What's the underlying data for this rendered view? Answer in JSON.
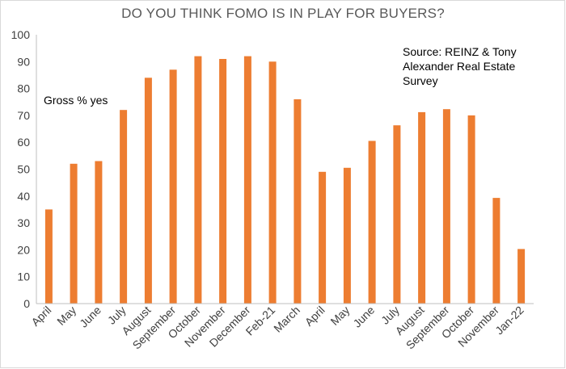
{
  "chart_data": {
    "type": "bar",
    "title": "DO YOU THINK FOMO IS IN PLAY FOR BUYERS?",
    "xlabel": "",
    "ylabel": "",
    "ylim": [
      0,
      100
    ],
    "yticks": [
      0,
      10,
      20,
      30,
      40,
      50,
      60,
      70,
      80,
      90,
      100
    ],
    "grid": false,
    "categories": [
      "April",
      "May",
      "June",
      "July",
      "August",
      "September",
      "October",
      "November",
      "December",
      "Feb-21",
      "March",
      "April",
      "May",
      "June",
      "July",
      "August",
      "September",
      "October",
      "November",
      "Jan-22"
    ],
    "values": [
      35,
      52,
      53,
      72,
      84,
      87,
      92,
      91,
      92,
      90,
      76,
      49,
      50.5,
      60.5,
      66.3,
      71.2,
      72.3,
      70,
      39.3,
      20.3
    ],
    "bar_color": "#ed7d31",
    "annotations": {
      "series_label": "Gross % yes",
      "source_lines": [
        "Source: REINZ & Tony",
        "Alexander  Real Estate",
        "Survey"
      ]
    }
  }
}
